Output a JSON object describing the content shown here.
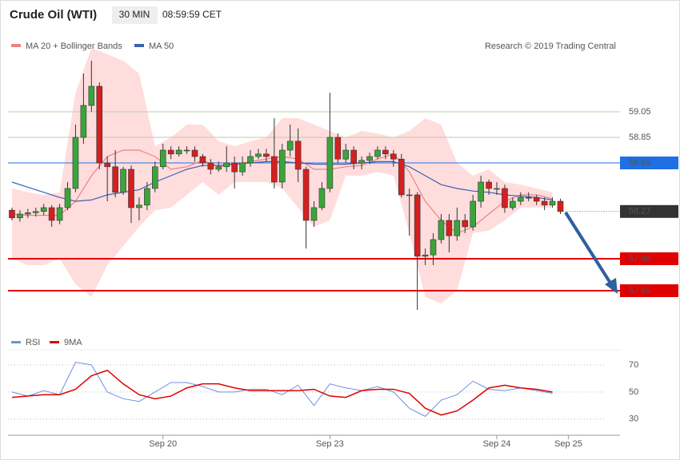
{
  "chart_data": {
    "type": "candlestick",
    "title": "Crude Oil (WTI)",
    "interval": "30 MIN",
    "time": "08:59:59 CET",
    "legend": [
      "MA 20 + Bollinger Bands",
      "MA 50"
    ],
    "credit": "Research © 2019 Trading Central",
    "up_color": "#3aa53a",
    "down_color": "#d42020",
    "xlim": [
      -0.5,
      76.5
    ],
    "xticks": [
      {
        "value": 19,
        "label": "Sep 20"
      },
      {
        "value": 40,
        "label": "Sep 23"
      },
      {
        "value": 61,
        "label": "Sep 24"
      },
      {
        "value": 70,
        "label": "Sep 25"
      }
    ],
    "ylim": [
      57.35,
      59.5
    ],
    "open": [
      58.28,
      58.22,
      58.25,
      58.26,
      58.27,
      58.3,
      58.2,
      58.3,
      58.45,
      58.85,
      59.1,
      59.25,
      58.65,
      58.62,
      58.42,
      58.6,
      58.3,
      58.32,
      58.45,
      58.62,
      58.75,
      58.72,
      58.75,
      58.75,
      58.7,
      58.65,
      58.6,
      58.62,
      58.65,
      58.58,
      58.65,
      58.7,
      58.72,
      58.7,
      58.5,
      58.75,
      58.82,
      58.6,
      58.2,
      58.3,
      58.45,
      58.85,
      58.68,
      58.75,
      58.65,
      58.67,
      58.7,
      58.75,
      58.72,
      58.68,
      58.4,
      58.4,
      57.92,
      57.93,
      58.05,
      58.2,
      58.08,
      58.2,
      58.15,
      58.35,
      58.5,
      58.45,
      58.45,
      58.3,
      58.35,
      58.38,
      58.38,
      58.35,
      58.32,
      58.35
    ],
    "high": [
      58.3,
      58.28,
      58.29,
      58.3,
      58.33,
      58.32,
      58.33,
      58.5,
      58.95,
      59.35,
      59.45,
      59.28,
      58.7,
      58.75,
      58.62,
      58.63,
      58.38,
      58.5,
      58.66,
      58.8,
      58.78,
      58.78,
      58.78,
      58.78,
      58.72,
      58.68,
      58.66,
      58.78,
      58.7,
      58.7,
      58.75,
      58.76,
      58.76,
      59.0,
      58.8,
      58.95,
      58.92,
      58.62,
      58.35,
      58.5,
      59.2,
      58.88,
      58.8,
      58.78,
      58.7,
      58.73,
      58.78,
      58.78,
      58.75,
      58.72,
      58.45,
      58.42,
      57.98,
      58.1,
      58.25,
      58.25,
      58.3,
      58.25,
      58.4,
      58.55,
      58.52,
      58.5,
      58.48,
      58.38,
      58.42,
      58.42,
      58.4,
      58.38,
      58.38,
      58.37
    ],
    "low": [
      58.2,
      58.19,
      58.22,
      58.23,
      58.24,
      58.15,
      58.17,
      58.28,
      58.42,
      58.8,
      59.05,
      58.6,
      58.35,
      58.38,
      58.4,
      58.18,
      58.2,
      58.28,
      58.42,
      58.6,
      58.68,
      58.7,
      58.72,
      58.66,
      58.62,
      58.56,
      58.58,
      58.58,
      58.45,
      58.55,
      58.62,
      58.68,
      58.66,
      58.45,
      58.45,
      58.7,
      58.5,
      57.98,
      58.15,
      58.28,
      58.42,
      58.65,
      58.65,
      58.6,
      58.6,
      58.64,
      58.68,
      58.68,
      58.62,
      58.38,
      58.08,
      57.5,
      57.85,
      57.85,
      58.02,
      57.95,
      58.04,
      58.1,
      58.12,
      58.3,
      58.4,
      58.4,
      58.26,
      58.28,
      58.32,
      58.35,
      58.32,
      58.28,
      58.3,
      58.25
    ],
    "close": [
      58.22,
      58.25,
      58.26,
      58.27,
      58.3,
      58.2,
      58.3,
      58.45,
      58.85,
      59.1,
      59.25,
      58.65,
      58.62,
      58.42,
      58.6,
      58.3,
      58.32,
      58.45,
      58.62,
      58.75,
      58.72,
      58.75,
      58.75,
      58.7,
      58.65,
      58.6,
      58.62,
      58.65,
      58.58,
      58.65,
      58.7,
      58.72,
      58.7,
      58.5,
      58.75,
      58.82,
      58.6,
      58.2,
      58.3,
      58.45,
      58.85,
      58.68,
      58.75,
      58.65,
      58.67,
      58.7,
      58.75,
      58.72,
      58.68,
      58.4,
      58.4,
      57.92,
      57.93,
      58.05,
      58.2,
      58.08,
      58.2,
      58.15,
      58.35,
      58.5,
      58.45,
      58.45,
      58.3,
      58.35,
      58.38,
      58.38,
      58.35,
      58.32,
      58.35,
      58.27
    ],
    "band_x": [
      0,
      2,
      4,
      6,
      8,
      10,
      12,
      14,
      16,
      18,
      20,
      22,
      24,
      26,
      28,
      30,
      32,
      34,
      36,
      38,
      40,
      42,
      44,
      46,
      48,
      50,
      52,
      54,
      56,
      58,
      60,
      62,
      64,
      66,
      68
    ],
    "upper_band": [
      58.45,
      58.42,
      58.4,
      58.42,
      59.2,
      59.55,
      59.5,
      59.45,
      59.35,
      58.78,
      58.85,
      58.95,
      58.95,
      58.82,
      58.78,
      58.82,
      58.85,
      59.0,
      59.0,
      58.95,
      58.9,
      58.85,
      58.9,
      58.88,
      58.85,
      58.9,
      59.0,
      58.95,
      58.65,
      58.55,
      58.6,
      58.5,
      58.48,
      58.45,
      58.42
    ],
    "lower_band": [
      57.9,
      57.85,
      57.85,
      57.9,
      57.7,
      57.6,
      57.85,
      58.0,
      58.15,
      58.28,
      58.3,
      58.4,
      58.5,
      58.4,
      58.5,
      58.5,
      58.5,
      58.45,
      58.3,
      58.15,
      58.2,
      58.55,
      58.55,
      58.58,
      58.55,
      58.1,
      57.6,
      57.55,
      57.65,
      58.1,
      58.12,
      58.2,
      58.3,
      58.3,
      58.3
    ],
    "series": [
      {
        "name": "MA 20 + Bollinger Bands",
        "color": "#f08080",
        "values": [
          58.25,
          58.24,
          58.24,
          58.24,
          58.35,
          58.55,
          58.7,
          58.75,
          58.75,
          58.7,
          58.6,
          58.62,
          58.67,
          58.62,
          58.64,
          58.66,
          58.68,
          58.7,
          58.68,
          58.6,
          58.6,
          58.62,
          58.63,
          58.68,
          58.72,
          58.58,
          58.35,
          58.2,
          58.1,
          58.15,
          58.25,
          58.35,
          58.4,
          58.4,
          58.37
        ]
      },
      {
        "name": "MA 50",
        "color": "#3a62b0",
        "values": [
          58.5,
          58.46,
          58.42,
          58.38,
          58.35,
          58.36,
          58.4,
          58.42,
          58.44,
          58.5,
          58.55,
          58.6,
          58.63,
          58.63,
          58.64,
          58.65,
          58.66,
          58.66,
          58.65,
          58.64,
          58.64,
          58.64,
          58.65,
          58.66,
          58.66,
          58.62,
          58.55,
          58.48,
          58.45,
          58.43,
          58.42,
          58.4,
          58.39,
          58.38,
          58.36
        ]
      }
    ],
    "levels": [
      {
        "value": 59.05,
        "label": "59.05",
        "color": "#b8d0a4"
      },
      {
        "value": 58.85,
        "label": "58.85",
        "color": "#b8d0a4"
      },
      {
        "value": 58.65,
        "label": "58.65",
        "color": "#1f6fe5"
      },
      {
        "value": 57.9,
        "label": "57.90",
        "color": "#e00000"
      },
      {
        "value": 57.65,
        "label": "57.65",
        "color": "#e00000"
      }
    ],
    "last": 58.27,
    "rsi": {
      "ylim": [
        21,
        80
      ],
      "yticks": [
        30,
        50,
        70
      ],
      "series": [
        {
          "name": "RSI",
          "color": "#6d8fe0",
          "values": [
            50,
            47,
            51,
            48,
            72,
            70,
            50,
            45,
            43,
            50,
            57,
            57,
            54,
            50,
            50,
            52,
            52,
            48,
            55,
            40,
            56,
            53,
            51,
            54,
            50,
            38,
            32,
            44,
            48,
            58,
            52,
            51,
            53,
            51,
            49
          ]
        },
        {
          "name": "9MA",
          "color": "#e00000",
          "values": [
            46,
            47,
            48,
            48,
            52,
            62,
            66,
            56,
            48,
            45,
            47,
            53,
            56,
            56,
            53,
            51,
            51,
            51,
            51,
            52,
            47,
            46,
            51,
            52,
            52,
            49,
            38,
            33,
            36,
            44,
            53,
            55,
            53,
            52,
            50
          ]
        }
      ]
    }
  }
}
